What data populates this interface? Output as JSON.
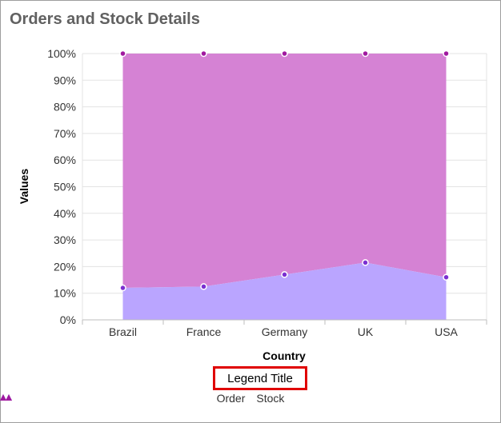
{
  "title": "Orders and Stock Details",
  "chart_data": {
    "type": "area",
    "stacking": "100%",
    "categories": [
      "Brazil",
      "France",
      "Germany",
      "UK",
      "USA"
    ],
    "series": [
      {
        "name": "Order",
        "values": [
          12,
          12.5,
          17,
          21.5,
          16
        ],
        "color": "#b9a3ff"
      },
      {
        "name": "Stock",
        "values": [
          88,
          87.5,
          83,
          78.5,
          84
        ],
        "color": "#d47fd3"
      }
    ],
    "xlabel": "Country",
    "ylabel": "Values",
    "ylim": [
      0,
      100
    ],
    "yticks": [
      "0%",
      "10%",
      "20%",
      "30%",
      "40%",
      "50%",
      "60%",
      "70%",
      "80%",
      "90%",
      "100%"
    ],
    "grid": true,
    "legend_title": "Legend Title",
    "legend_placement": "bottom"
  }
}
